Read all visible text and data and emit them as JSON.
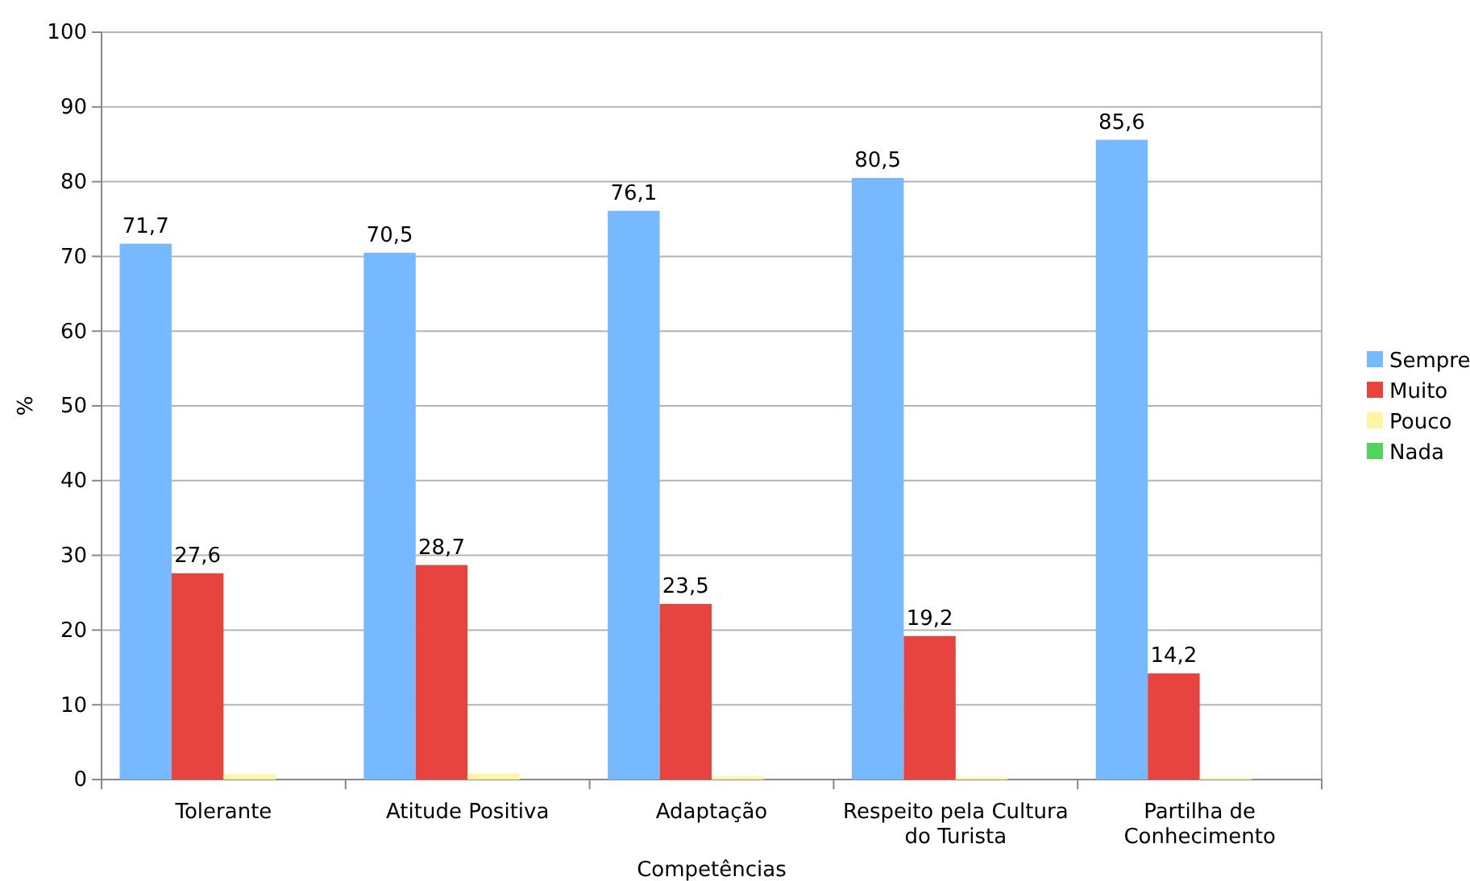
{
  "chart_data": {
    "type": "bar",
    "xlabel": "Competências",
    "ylabel": "%",
    "categories": [
      "Tolerante",
      "Atitude Positiva",
      "Adaptação",
      "Respeito pela Cultura do Turista",
      "Partilha de Conhecimento"
    ],
    "series": [
      {
        "name": "Sempre",
        "color": "#77b9ff",
        "values": [
          71.7,
          70.5,
          76.1,
          80.5,
          85.6
        ],
        "value_labels": [
          "71,7",
          "70,5",
          "76,1",
          "80,5",
          "85,6"
        ]
      },
      {
        "name": "Muito",
        "color": "#e8443f",
        "values": [
          27.6,
          28.7,
          23.5,
          19.2,
          14.2
        ],
        "value_labels": [
          "27,6",
          "28,7",
          "23,5",
          "19,2",
          "14,2"
        ]
      },
      {
        "name": "Pouco",
        "color": "#fff5a0",
        "values": [
          0.7,
          0.8,
          0.4,
          0.3,
          0.2
        ]
      },
      {
        "name": "Nada",
        "color": "#4fd65a",
        "values": [
          0,
          0,
          0,
          0,
          0
        ]
      }
    ],
    "ylim": [
      0,
      100
    ],
    "yticks": [
      0,
      10,
      20,
      30,
      40,
      50,
      60,
      70,
      80,
      90,
      100
    ],
    "grid": "y",
    "legend": "right"
  }
}
